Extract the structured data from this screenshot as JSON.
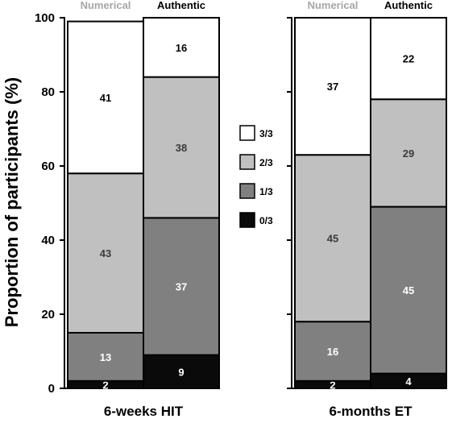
{
  "chart_data": {
    "type": "bar",
    "stacked": true,
    "ylabel": "Proportion of participants (%)",
    "ylim": [
      0,
      100
    ],
    "yticks": [
      "0",
      "20",
      "40",
      "60",
      "80",
      "100"
    ],
    "grid": false,
    "legend_position": "center",
    "legend": [
      {
        "name": "3/3",
        "color": "#ffffff"
      },
      {
        "name": "2/3",
        "color": "#c0c0c0"
      },
      {
        "name": "1/3",
        "color": "#808080"
      },
      {
        "name": "0/3",
        "color": "#0a0a0a"
      }
    ],
    "groups": [
      {
        "label": "6-weeks HIT",
        "bars": [
          {
            "label": "Numerical",
            "label_color": "#a6a6a6",
            "values": {
              "0/3": 2,
              "1/3": 13,
              "2/3": 43,
              "3/3": 41
            }
          },
          {
            "label": "Authentic",
            "label_color": "#000000",
            "values": {
              "0/3": 9,
              "1/3": 37,
              "2/3": 38,
              "3/3": 16
            }
          }
        ]
      },
      {
        "label": "6-months ET",
        "bars": [
          {
            "label": "Numerical",
            "label_color": "#a6a6a6",
            "values": {
              "0/3": 2,
              "1/3": 16,
              "2/3": 45,
              "3/3": 37
            }
          },
          {
            "label": "Authentic",
            "label_color": "#000000",
            "values": {
              "0/3": 4,
              "1/3": 45,
              "2/3": 29,
              "3/3": 22
            }
          }
        ]
      }
    ]
  }
}
